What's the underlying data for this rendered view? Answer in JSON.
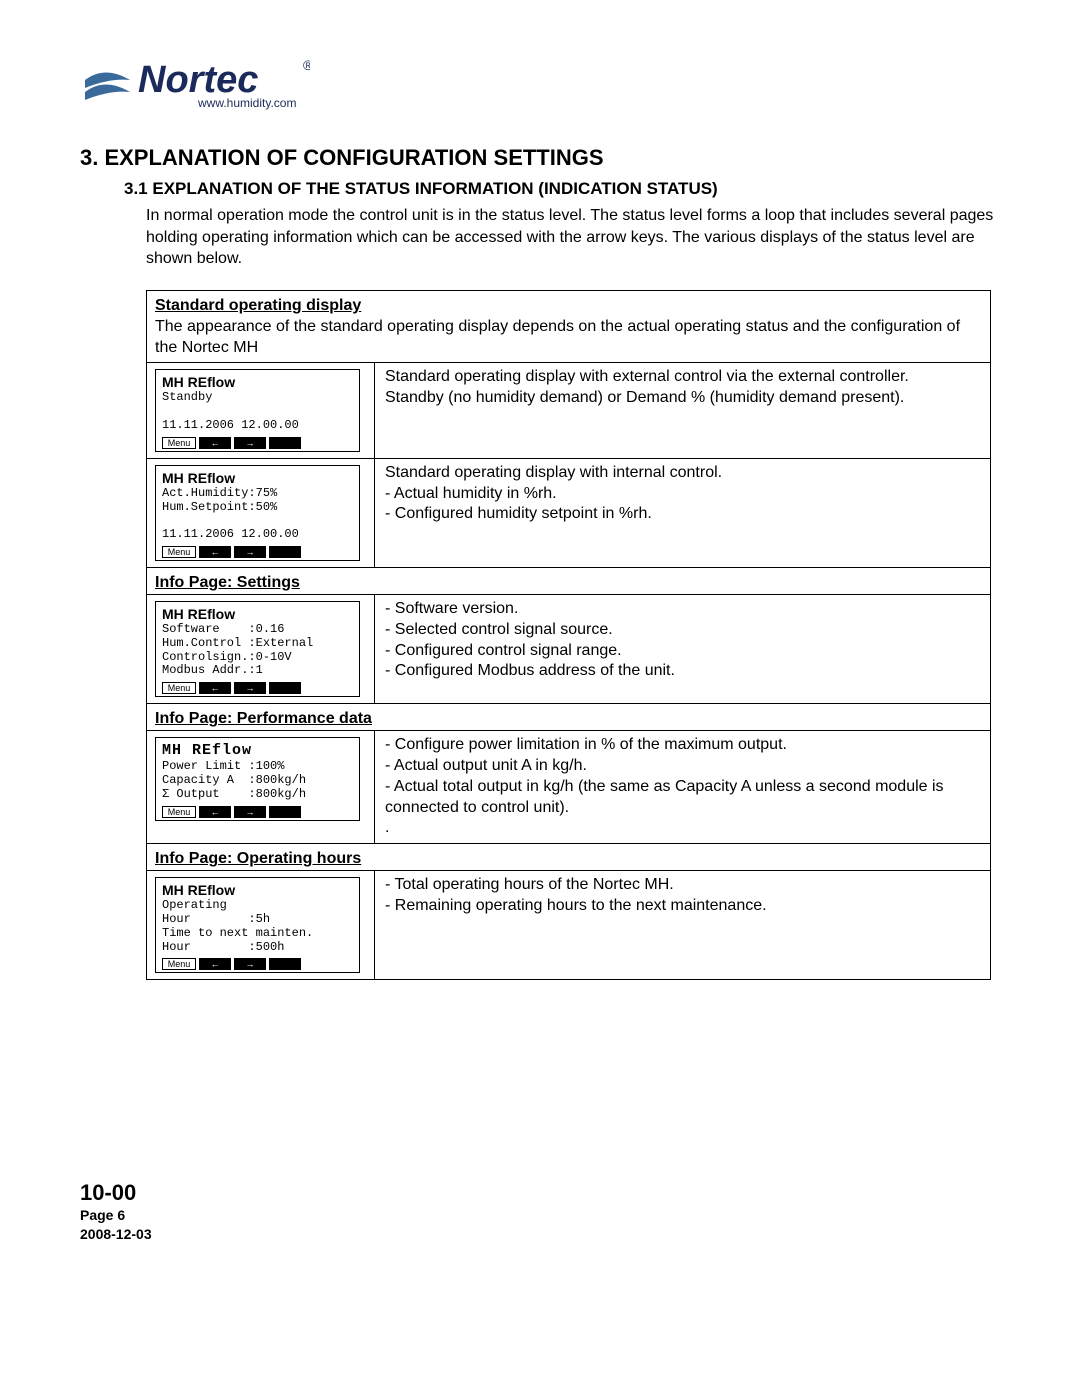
{
  "logo": {
    "brand": "Nortec",
    "tagline": "www.humidity.com",
    "wave_color": "#3a6a9a",
    "text_color": "#1a2a5a"
  },
  "heading1": "3. EXPLANATION OF CONFIGURATION SETTINGS",
  "heading2": "3.1   EXPLANATION OF THE STATUS INFORMATION (INDICATION STATUS)",
  "intro": "In normal operation mode the control unit is in the status level. The status level forms a loop that includes several pages holding operating information which can be accessed with the arrow keys. The various displays of the status level are shown below.",
  "sections": [
    {
      "title": "Standard operating display",
      "subtitle": "The appearance of the standard operating display depends on the actual operating status and the configuration of the Nortec MH",
      "rows": [
        {
          "lcd": {
            "title": "MH REflow",
            "title_mono": false,
            "lines": [
              "Standby",
              "",
              "11.11.2006 12.00.00"
            ]
          },
          "desc": "Standard operating display with external control via the external controller.\nStandby (no humidity demand) or Demand % (humidity demand present)."
        },
        {
          "lcd": {
            "title": "MH REflow",
            "title_mono": false,
            "lines": [
              "Act.Humidity:75%",
              "Hum.Setpoint:50%",
              "",
              "11.11.2006 12.00.00"
            ]
          },
          "desc": "Standard operating display with internal control.\n- Actual humidity in %rh.\n- Configured humidity setpoint in %rh."
        }
      ]
    },
    {
      "title": "Info Page: Settings",
      "rows": [
        {
          "lcd": {
            "title": "MH REflow",
            "title_mono": false,
            "lines": [
              "Software    :0.16",
              "Hum.Control :External",
              "Controlsign.:0-10V",
              "Modbus Addr.:1"
            ]
          },
          "desc": "- Software version.\n- Selected control signal source.\n- Configured control signal range.\n- Configured Modbus address of the unit."
        }
      ]
    },
    {
      "title": "Info Page: Performance data",
      "rows": [
        {
          "lcd": {
            "title": "MH  REflow",
            "title_mono": true,
            "lines": [
              "Power Limit :100%",
              "Capacity A  :800kg/h",
              "Σ Output    :800kg/h"
            ]
          },
          "desc": "- Configure power limitation in % of the maximum output.\n- Actual output unit A in kg/h.\n- Actual total output in kg/h (the same as Capacity A unless a second module is connected to control unit).\n."
        }
      ]
    },
    {
      "title": "Info Page: Operating hours",
      "rows": [
        {
          "lcd": {
            "title": "MH REflow",
            "title_mono": false,
            "lines": [
              "Operating",
              "Hour        :5h",
              "Time to next mainten.",
              "Hour        :500h"
            ]
          },
          "desc": "- Total operating hours of the Nortec MH.\n- Remaining operating hours to the next maintenance."
        }
      ]
    }
  ],
  "lcd_buttons": {
    "menu": "Menu",
    "left": "←",
    "right": "→",
    "blank": ""
  },
  "footer": {
    "code": "10-00",
    "page": "Page 6",
    "date": "2008-12-03"
  }
}
